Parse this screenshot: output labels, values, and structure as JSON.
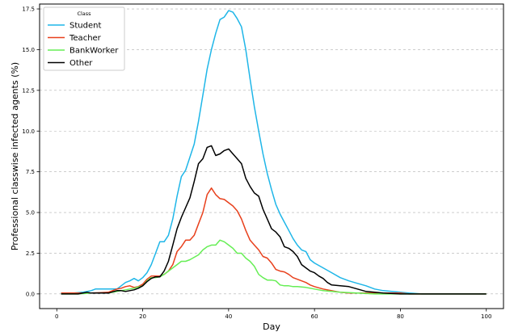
{
  "chart_data": {
    "type": "line",
    "xlabel": "Day",
    "ylabel": "Professional classwise infected agents (%)",
    "xlim": [
      -4,
      104
    ],
    "ylim": [
      -0.9,
      17.8
    ],
    "xticks": [
      0,
      20,
      40,
      60,
      80,
      100
    ],
    "yticks": [
      0.0,
      2.5,
      5.0,
      7.5,
      10.0,
      12.5,
      15.0,
      17.5
    ],
    "ytick_labels": [
      "0.0",
      "2.5",
      "5.0",
      "7.5",
      "10.0",
      "12.5",
      "15.0",
      "17.5"
    ],
    "grid": "y-dashed",
    "legend": {
      "title": "Class",
      "placement": "top-left",
      "entries": [
        "Student",
        "Teacher",
        "BankWorker",
        "Other"
      ]
    },
    "series": [
      {
        "name": "Student",
        "color": "#1fb6e8",
        "points": [
          [
            1,
            0.05
          ],
          [
            4,
            0.05
          ],
          [
            6,
            0.1
          ],
          [
            8,
            0.2
          ],
          [
            9,
            0.3
          ],
          [
            10,
            0.3
          ],
          [
            12,
            0.3
          ],
          [
            14,
            0.3
          ],
          [
            15,
            0.5
          ],
          [
            16,
            0.7
          ],
          [
            17,
            0.8
          ],
          [
            18,
            0.95
          ],
          [
            19,
            0.8
          ],
          [
            20,
            1.0
          ],
          [
            21,
            1.3
          ],
          [
            22,
            1.8
          ],
          [
            23,
            2.5
          ],
          [
            24,
            3.2
          ],
          [
            25,
            3.2
          ],
          [
            26,
            3.6
          ],
          [
            27,
            4.6
          ],
          [
            28,
            6.0
          ],
          [
            29,
            7.2
          ],
          [
            30,
            7.6
          ],
          [
            31,
            8.4
          ],
          [
            32,
            9.2
          ],
          [
            33,
            10.6
          ],
          [
            34,
            12.2
          ],
          [
            35,
            13.8
          ],
          [
            36,
            15.0
          ],
          [
            37,
            16.0
          ],
          [
            38,
            16.85
          ],
          [
            39,
            17.0
          ],
          [
            40,
            17.4
          ],
          [
            41,
            17.3
          ],
          [
            42,
            16.9
          ],
          [
            43,
            16.4
          ],
          [
            44,
            15.0
          ],
          [
            45,
            13.2
          ],
          [
            46,
            11.5
          ],
          [
            47,
            10.0
          ],
          [
            48,
            8.6
          ],
          [
            49,
            7.4
          ],
          [
            50,
            6.4
          ],
          [
            51,
            5.5
          ],
          [
            52,
            4.9
          ],
          [
            53,
            4.4
          ],
          [
            54,
            3.9
          ],
          [
            55,
            3.4
          ],
          [
            56,
            3.0
          ],
          [
            57,
            2.7
          ],
          [
            58,
            2.6
          ],
          [
            59,
            2.1
          ],
          [
            60,
            1.9
          ],
          [
            62,
            1.6
          ],
          [
            64,
            1.3
          ],
          [
            66,
            1.0
          ],
          [
            68,
            0.8
          ],
          [
            70,
            0.65
          ],
          [
            72,
            0.5
          ],
          [
            74,
            0.3
          ],
          [
            76,
            0.2
          ],
          [
            78,
            0.15
          ],
          [
            80,
            0.1
          ],
          [
            82,
            0.05
          ],
          [
            85,
            0.0
          ],
          [
            100,
            0.0
          ]
        ]
      },
      {
        "name": "Teacher",
        "color": "#e8401c",
        "points": [
          [
            1,
            0.05
          ],
          [
            5,
            0.05
          ],
          [
            8,
            0.05
          ],
          [
            12,
            0.1
          ],
          [
            14,
            0.3
          ],
          [
            15,
            0.35
          ],
          [
            16,
            0.45
          ],
          [
            17,
            0.5
          ],
          [
            18,
            0.4
          ],
          [
            19,
            0.45
          ],
          [
            20,
            0.6
          ],
          [
            21,
            0.9
          ],
          [
            22,
            1.1
          ],
          [
            23,
            1.1
          ],
          [
            24,
            1.1
          ],
          [
            25,
            1.2
          ],
          [
            26,
            1.4
          ],
          [
            27,
            1.8
          ],
          [
            28,
            2.6
          ],
          [
            29,
            2.9
          ],
          [
            30,
            3.3
          ],
          [
            31,
            3.3
          ],
          [
            32,
            3.6
          ],
          [
            33,
            4.3
          ],
          [
            34,
            5.0
          ],
          [
            35,
            6.1
          ],
          [
            36,
            6.5
          ],
          [
            37,
            6.1
          ],
          [
            38,
            5.85
          ],
          [
            39,
            5.8
          ],
          [
            40,
            5.6
          ],
          [
            41,
            5.4
          ],
          [
            42,
            5.1
          ],
          [
            43,
            4.6
          ],
          [
            44,
            3.9
          ],
          [
            45,
            3.3
          ],
          [
            46,
            3.0
          ],
          [
            47,
            2.7
          ],
          [
            48,
            2.3
          ],
          [
            49,
            2.2
          ],
          [
            50,
            1.9
          ],
          [
            51,
            1.5
          ],
          [
            52,
            1.4
          ],
          [
            53,
            1.35
          ],
          [
            54,
            1.2
          ],
          [
            55,
            1.0
          ],
          [
            56,
            0.9
          ],
          [
            57,
            0.8
          ],
          [
            58,
            0.7
          ],
          [
            59,
            0.55
          ],
          [
            60,
            0.45
          ],
          [
            62,
            0.3
          ],
          [
            64,
            0.2
          ],
          [
            66,
            0.1
          ],
          [
            68,
            0.05
          ],
          [
            72,
            0.05
          ],
          [
            76,
            0.05
          ],
          [
            80,
            0.05
          ],
          [
            82,
            0.0
          ],
          [
            100,
            0.0
          ]
        ]
      },
      {
        "name": "BankWorker",
        "color": "#66ee55",
        "points": [
          [
            1,
            0.0
          ],
          [
            5,
            0.0
          ],
          [
            8,
            0.05
          ],
          [
            12,
            0.05
          ],
          [
            15,
            0.2
          ],
          [
            18,
            0.35
          ],
          [
            20,
            0.5
          ],
          [
            21,
            0.8
          ],
          [
            22,
            1.0
          ],
          [
            23,
            1.0
          ],
          [
            24,
            1.05
          ],
          [
            25,
            1.2
          ],
          [
            26,
            1.4
          ],
          [
            27,
            1.6
          ],
          [
            28,
            1.8
          ],
          [
            29,
            2.0
          ],
          [
            30,
            2.0
          ],
          [
            31,
            2.1
          ],
          [
            32,
            2.25
          ],
          [
            33,
            2.4
          ],
          [
            34,
            2.7
          ],
          [
            35,
            2.9
          ],
          [
            36,
            3.0
          ],
          [
            37,
            3.0
          ],
          [
            38,
            3.3
          ],
          [
            39,
            3.2
          ],
          [
            40,
            3.0
          ],
          [
            41,
            2.8
          ],
          [
            42,
            2.5
          ],
          [
            43,
            2.5
          ],
          [
            44,
            2.2
          ],
          [
            45,
            2.0
          ],
          [
            46,
            1.7
          ],
          [
            47,
            1.2
          ],
          [
            48,
            1.0
          ],
          [
            49,
            0.85
          ],
          [
            50,
            0.85
          ],
          [
            51,
            0.8
          ],
          [
            52,
            0.55
          ],
          [
            53,
            0.5
          ],
          [
            54,
            0.5
          ],
          [
            55,
            0.45
          ],
          [
            56,
            0.45
          ],
          [
            58,
            0.4
          ],
          [
            60,
            0.3
          ],
          [
            62,
            0.2
          ],
          [
            64,
            0.15
          ],
          [
            66,
            0.1
          ],
          [
            70,
            0.05
          ],
          [
            74,
            0.0
          ],
          [
            100,
            0.0
          ]
        ]
      },
      {
        "name": "Other",
        "color": "#000000",
        "points": [
          [
            1,
            0.0
          ],
          [
            5,
            0.0
          ],
          [
            7,
            0.1
          ],
          [
            8,
            0.05
          ],
          [
            12,
            0.05
          ],
          [
            14,
            0.2
          ],
          [
            15,
            0.2
          ],
          [
            16,
            0.15
          ],
          [
            17,
            0.2
          ],
          [
            18,
            0.25
          ],
          [
            19,
            0.35
          ],
          [
            20,
            0.5
          ],
          [
            21,
            0.75
          ],
          [
            22,
            0.95
          ],
          [
            23,
            1.05
          ],
          [
            24,
            1.05
          ],
          [
            25,
            1.4
          ],
          [
            26,
            2.0
          ],
          [
            27,
            3.0
          ],
          [
            28,
            4.0
          ],
          [
            29,
            4.7
          ],
          [
            30,
            5.3
          ],
          [
            31,
            5.9
          ],
          [
            32,
            6.9
          ],
          [
            33,
            8.0
          ],
          [
            34,
            8.3
          ],
          [
            35,
            9.0
          ],
          [
            36,
            9.1
          ],
          [
            37,
            8.5
          ],
          [
            38,
            8.6
          ],
          [
            39,
            8.8
          ],
          [
            40,
            8.9
          ],
          [
            41,
            8.6
          ],
          [
            42,
            8.3
          ],
          [
            43,
            8.0
          ],
          [
            44,
            7.1
          ],
          [
            45,
            6.6
          ],
          [
            46,
            6.2
          ],
          [
            47,
            6.0
          ],
          [
            48,
            5.2
          ],
          [
            49,
            4.6
          ],
          [
            50,
            4.0
          ],
          [
            51,
            3.8
          ],
          [
            52,
            3.5
          ],
          [
            53,
            2.9
          ],
          [
            54,
            2.8
          ],
          [
            55,
            2.6
          ],
          [
            56,
            2.3
          ],
          [
            57,
            1.8
          ],
          [
            58,
            1.6
          ],
          [
            59,
            1.4
          ],
          [
            60,
            1.3
          ],
          [
            61,
            1.1
          ],
          [
            62,
            0.95
          ],
          [
            63,
            0.7
          ],
          [
            64,
            0.55
          ],
          [
            66,
            0.5
          ],
          [
            68,
            0.45
          ],
          [
            70,
            0.3
          ],
          [
            72,
            0.15
          ],
          [
            74,
            0.1
          ],
          [
            76,
            0.05
          ],
          [
            80,
            0.0
          ],
          [
            100,
            0.0
          ]
        ]
      }
    ]
  }
}
